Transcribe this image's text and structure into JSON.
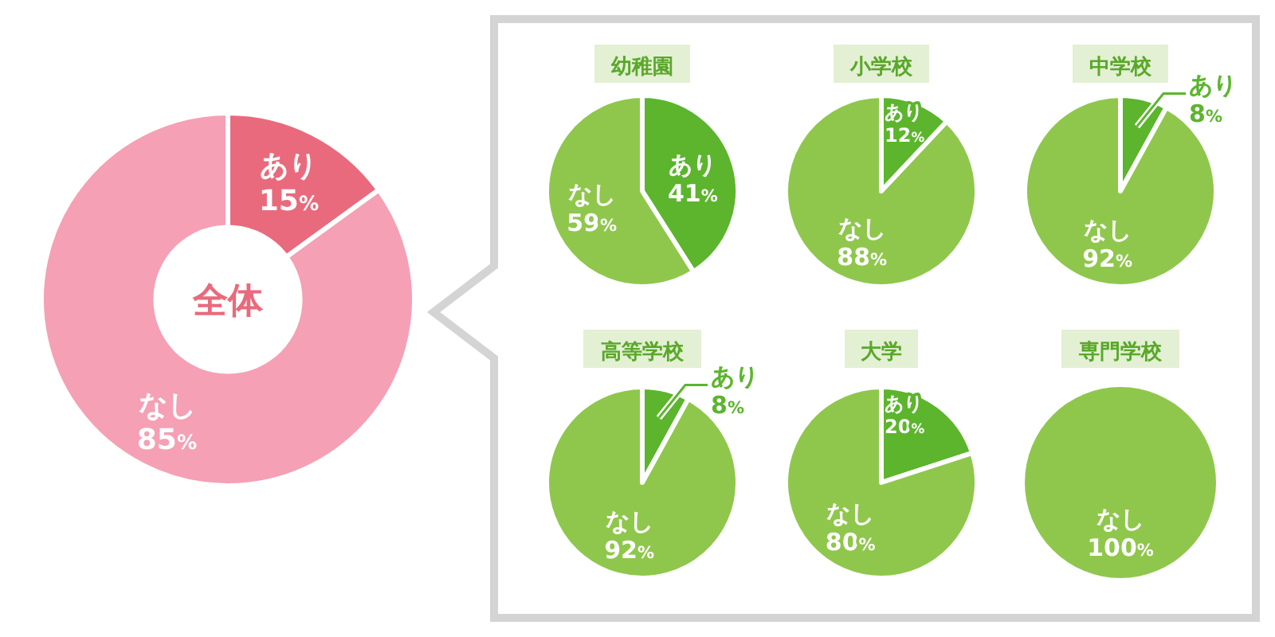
{
  "chart_data": [
    {
      "type": "donut",
      "title": "全体",
      "categories": [
        "あり",
        "なし"
      ],
      "values": [
        15,
        85
      ],
      "value_labels": [
        "15%",
        "85%"
      ],
      "colors": [
        "#e96a7c",
        "#f5a0b4"
      ]
    },
    {
      "type": "pie",
      "title": "幼稚園",
      "categories": [
        "あり",
        "なし"
      ],
      "values": [
        41,
        59
      ],
      "value_labels": [
        "41%",
        "59%"
      ],
      "colors": [
        "#5cb52d",
        "#8fc74c"
      ]
    },
    {
      "type": "pie",
      "title": "小学校",
      "categories": [
        "あり",
        "なし"
      ],
      "values": [
        12,
        88
      ],
      "value_labels": [
        "12%",
        "88%"
      ],
      "colors": [
        "#5cb52d",
        "#8fc74c"
      ]
    },
    {
      "type": "pie",
      "title": "中学校",
      "categories": [
        "あり",
        "なし"
      ],
      "values": [
        8,
        92
      ],
      "value_labels": [
        "8%",
        "92%"
      ],
      "colors": [
        "#5cb52d",
        "#8fc74c"
      ]
    },
    {
      "type": "pie",
      "title": "高等学校",
      "categories": [
        "あり",
        "なし"
      ],
      "values": [
        8,
        92
      ],
      "value_labels": [
        "8%",
        "92%"
      ],
      "colors": [
        "#5cb52d",
        "#8fc74c"
      ]
    },
    {
      "type": "pie",
      "title": "大学",
      "categories": [
        "あり",
        "なし"
      ],
      "values": [
        20,
        80
      ],
      "value_labels": [
        "20%",
        "80%"
      ],
      "colors": [
        "#5cb52d",
        "#8fc74c"
      ]
    },
    {
      "type": "pie",
      "title": "専門学校",
      "categories": [
        "なし"
      ],
      "values": [
        100
      ],
      "value_labels": [
        "100%"
      ],
      "colors": [
        "#8fc74c"
      ]
    }
  ]
}
